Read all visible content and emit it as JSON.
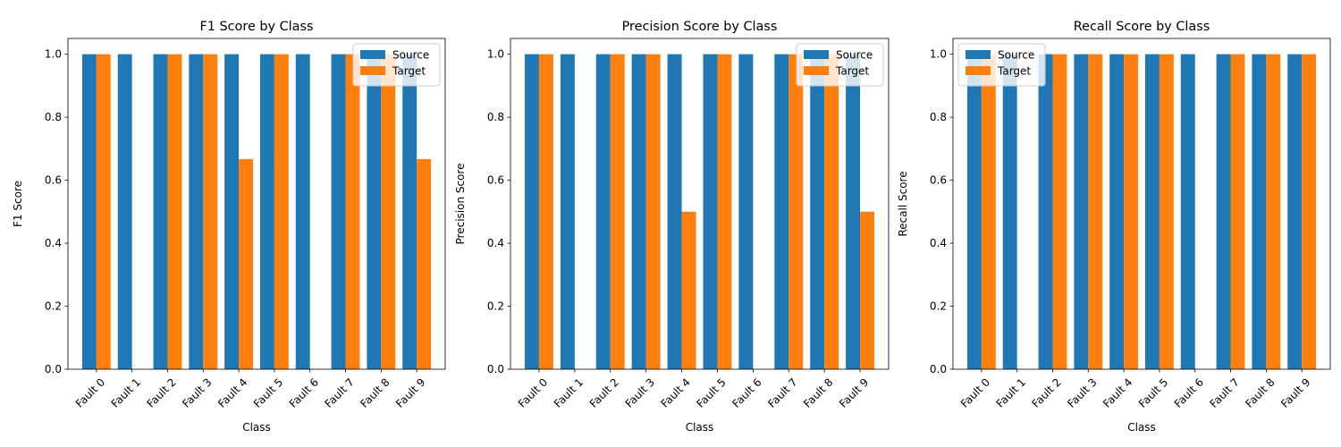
{
  "colors": {
    "source": "#1f77b4",
    "target": "#ff7f0e"
  },
  "chart_data": [
    {
      "type": "bar",
      "title": "F1 Score by Class",
      "xlabel": "Class",
      "ylabel": "F1 Score",
      "ylim": [
        0,
        1.05
      ],
      "yticks": [
        "0.0",
        "0.2",
        "0.4",
        "0.6",
        "0.8",
        "1.0"
      ],
      "legend_position": "upper right",
      "categories": [
        "Fault 0",
        "Fault 1",
        "Fault 2",
        "Fault 3",
        "Fault 4",
        "Fault 5",
        "Fault 6",
        "Fault 7",
        "Fault 8",
        "Fault 9"
      ],
      "series": [
        {
          "name": "Source",
          "values": [
            1.0,
            1.0,
            1.0,
            1.0,
            1.0,
            1.0,
            1.0,
            1.0,
            1.0,
            1.0
          ]
        },
        {
          "name": "Target",
          "values": [
            1.0,
            0.0,
            1.0,
            1.0,
            0.667,
            1.0,
            0.0,
            1.0,
            1.0,
            0.667
          ]
        }
      ]
    },
    {
      "type": "bar",
      "title": "Precision Score by Class",
      "xlabel": "Class",
      "ylabel": "Precision Score",
      "ylim": [
        0,
        1.05
      ],
      "yticks": [
        "0.0",
        "0.2",
        "0.4",
        "0.6",
        "0.8",
        "1.0"
      ],
      "legend_position": "upper right",
      "categories": [
        "Fault 0",
        "Fault 1",
        "Fault 2",
        "Fault 3",
        "Fault 4",
        "Fault 5",
        "Fault 6",
        "Fault 7",
        "Fault 8",
        "Fault 9"
      ],
      "series": [
        {
          "name": "Source",
          "values": [
            1.0,
            1.0,
            1.0,
            1.0,
            1.0,
            1.0,
            1.0,
            1.0,
            1.0,
            1.0
          ]
        },
        {
          "name": "Target",
          "values": [
            1.0,
            0.0,
            1.0,
            1.0,
            0.5,
            1.0,
            0.0,
            1.0,
            1.0,
            0.5
          ]
        }
      ]
    },
    {
      "type": "bar",
      "title": "Recall Score by Class",
      "xlabel": "Class",
      "ylabel": "Recall Score",
      "ylim": [
        0,
        1.05
      ],
      "yticks": [
        "0.0",
        "0.2",
        "0.4",
        "0.6",
        "0.8",
        "1.0"
      ],
      "legend_position": "upper left",
      "categories": [
        "Fault 0",
        "Fault 1",
        "Fault 2",
        "Fault 3",
        "Fault 4",
        "Fault 5",
        "Fault 6",
        "Fault 7",
        "Fault 8",
        "Fault 9"
      ],
      "series": [
        {
          "name": "Source",
          "values": [
            1.0,
            1.0,
            1.0,
            1.0,
            1.0,
            1.0,
            1.0,
            1.0,
            1.0,
            1.0
          ]
        },
        {
          "name": "Target",
          "values": [
            1.0,
            0.0,
            1.0,
            1.0,
            1.0,
            1.0,
            0.0,
            1.0,
            1.0,
            1.0
          ]
        }
      ]
    }
  ]
}
